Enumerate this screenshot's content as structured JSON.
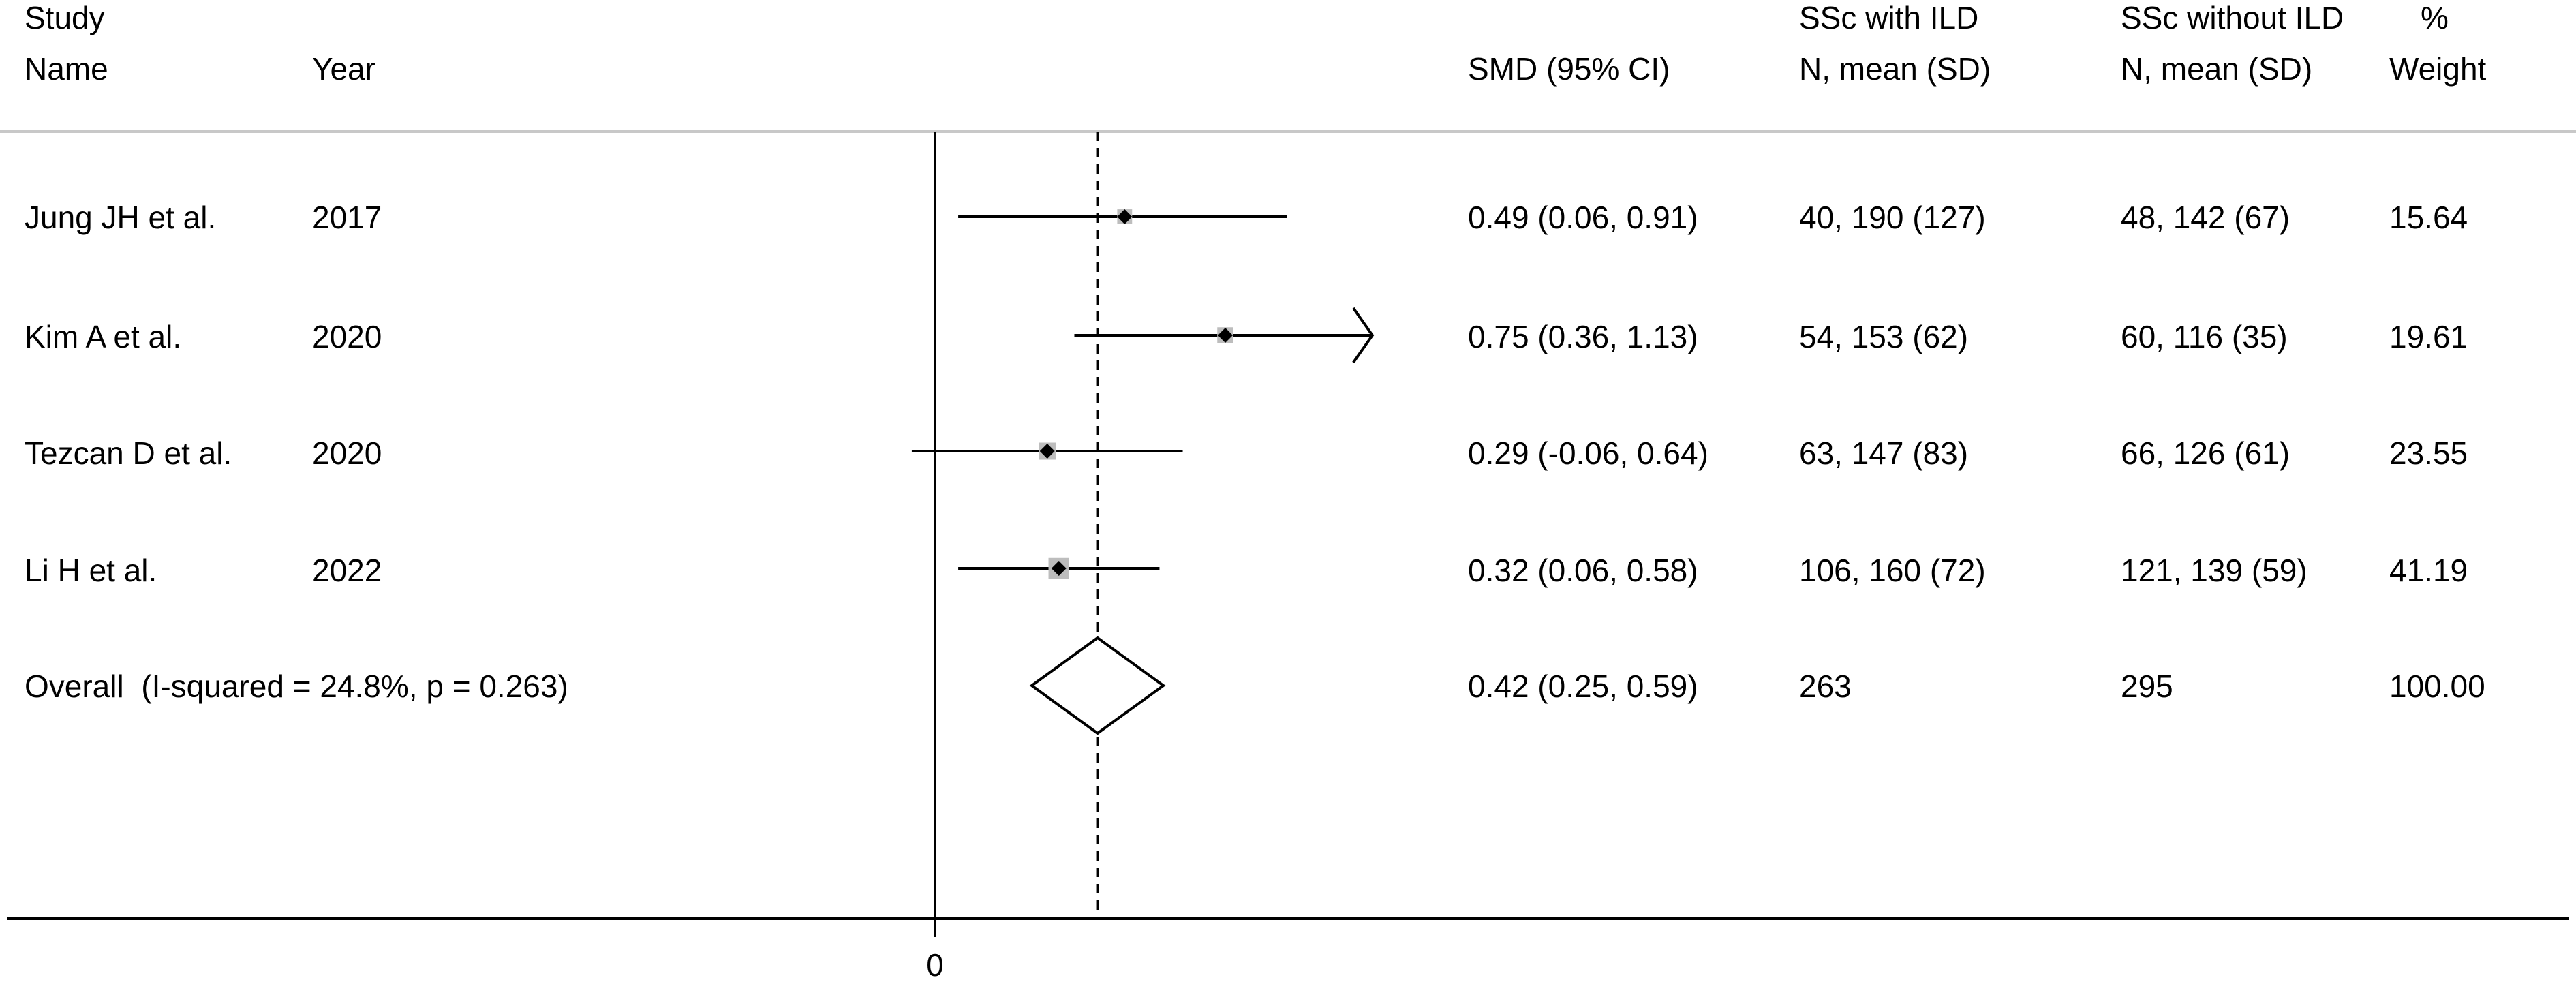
{
  "header": {
    "study_line1": "Study",
    "study_line2": "Name",
    "year": "Year",
    "smd": "SMD (95% CI)",
    "with_ild_line1": "SSc with ILD",
    "with_ild_line2": "N, mean (SD)",
    "without_ild_line1": "SSc without ILD",
    "without_ild_line2": "N, mean (SD)",
    "weight_line1": "%",
    "weight_line2": "Weight"
  },
  "chart_data": {
    "type": "forest",
    "x_tick_labels": [
      "0"
    ],
    "reference_line": 0,
    "pooled_line": 0.42,
    "studies": [
      {
        "name": "Jung JH et al.",
        "year": "2017",
        "smd": 0.49,
        "lower": 0.06,
        "upper": 0.91,
        "smd_text": "0.49 (0.06, 0.91)",
        "with_ild": "40, 190 (127)",
        "without_ild": "48, 142 (67)",
        "weight": 15.64,
        "weight_text": "15.64",
        "arrow_right": false
      },
      {
        "name": "Kim A et al.",
        "year": "2020",
        "smd": 0.75,
        "lower": 0.36,
        "upper": 1.13,
        "smd_text": "0.75 (0.36, 1.13)",
        "with_ild": "54, 153 (62)",
        "without_ild": "60, 116 (35)",
        "weight": 19.61,
        "weight_text": "19.61",
        "arrow_right": true
      },
      {
        "name": "Tezcan D et al.",
        "year": "2020",
        "smd": 0.29,
        "lower": -0.06,
        "upper": 0.64,
        "smd_text": "0.29 (-0.06, 0.64)",
        "with_ild": "63, 147 (83)",
        "without_ild": "66, 126 (61)",
        "weight": 23.55,
        "weight_text": "23.55",
        "arrow_right": false
      },
      {
        "name": "Li H et al.",
        "year": "2022",
        "smd": 0.32,
        "lower": 0.06,
        "upper": 0.58,
        "smd_text": "0.32 (0.06, 0.58)",
        "with_ild": "106, 160 (72)",
        "without_ild": "121, 139 (59)",
        "weight": 41.19,
        "weight_text": "41.19",
        "arrow_right": false
      }
    ],
    "overall": {
      "label": "Overall  (I-squared = 24.8%, p = 0.263)",
      "smd": 0.42,
      "lower": 0.25,
      "upper": 0.59,
      "smd_text": "0.42 (0.25, 0.59)",
      "with_ild": "263",
      "without_ild": "295",
      "weight_text": "100.00"
    },
    "colors": {
      "line": "#000000",
      "weight_box": "#bdbdbd",
      "header_rule": "#c8c8c8"
    }
  }
}
